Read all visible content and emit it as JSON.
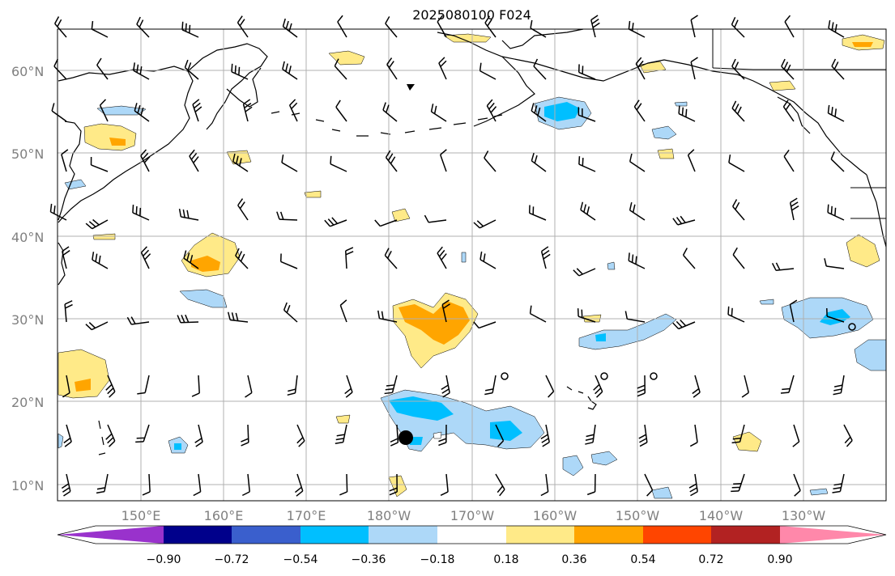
{
  "title": "2025080100 F024",
  "lat_labels": [
    "60°N",
    "50°N",
    "40°N",
    "30°N",
    "20°N",
    "10°N"
  ],
  "lon_labels": [
    "150°E",
    "160°E",
    "170°E",
    "180°W",
    "170°W",
    "160°W",
    "150°W",
    "140°W",
    "130°W"
  ],
  "colorbar": {
    "tick_labels": [
      "−0.90",
      "−0.72",
      "−0.54",
      "−0.36",
      "−0.18",
      "0.18",
      "0.36",
      "0.54",
      "0.72",
      "0.90"
    ],
    "colors": [
      "#9932cc",
      "#00008b",
      "#3a5fcd",
      "#00bfff",
      "#add8f8",
      "#ffffff",
      "#ffea88",
      "#ffa500",
      "#ff4500",
      "#b22222",
      "#ff88aa"
    ]
  },
  "colors": {
    "land_outline": "#000000",
    "grid": "#b0b0b0",
    "wind_barb": "#000000"
  }
}
